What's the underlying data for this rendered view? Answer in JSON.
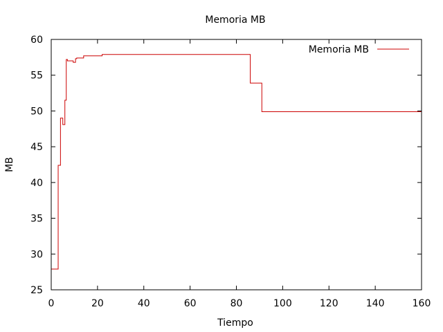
{
  "chart_data": {
    "type": "line",
    "title": "Memoria MB",
    "xlabel": "Tiempo",
    "ylabel": "MB",
    "xlim": [
      0,
      160
    ],
    "ylim": [
      25,
      60
    ],
    "xticks": [
      0,
      20,
      40,
      60,
      80,
      100,
      120,
      140,
      160
    ],
    "yticks": [
      25,
      30,
      35,
      40,
      45,
      50,
      55,
      60
    ],
    "grid": false,
    "legend_position": "top-right",
    "colors": {
      "series": "#cc0000",
      "axes": "#000000"
    },
    "series": [
      {
        "name": "Memoria MB",
        "step": true,
        "x": [
          0,
          3,
          4,
          5,
          5.9,
          6.5,
          7,
          9.5,
          10.5,
          11,
          14,
          22,
          86,
          91,
          160
        ],
        "y": [
          27.9,
          42.4,
          49.0,
          48.1,
          51.5,
          57.2,
          57.0,
          56.8,
          57.3,
          57.4,
          57.7,
          57.9,
          53.9,
          49.9,
          49.9
        ]
      }
    ]
  }
}
